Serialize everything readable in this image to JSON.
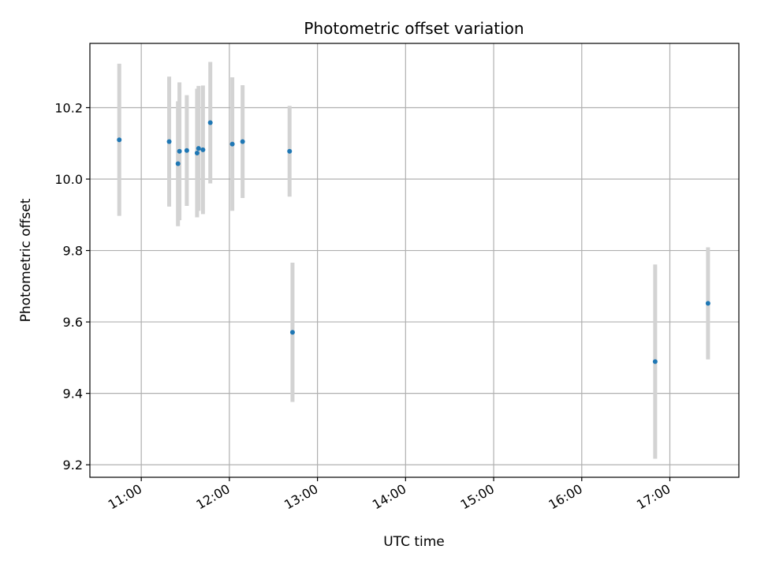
{
  "chart_data": {
    "type": "scatter",
    "title": "Photometric offset variation",
    "xlabel": "UTC time",
    "ylabel": "Photometric offset",
    "x_unit": "UTC time (HH:MM)",
    "xlim": [
      "10:25",
      "17:47"
    ],
    "ylim": [
      9.165,
      10.38
    ],
    "x_ticks": [
      "11:00",
      "12:00",
      "13:00",
      "14:00",
      "15:00",
      "16:00",
      "17:00"
    ],
    "y_ticks": [
      "9.2",
      "9.4",
      "9.6",
      "9.8",
      "10.0",
      "10.2"
    ],
    "grid": true,
    "legend": false,
    "colors": {
      "marker": "#1f77b4",
      "errorbar": "#d3d3d3",
      "grid": "#b0b0b0"
    },
    "series": [
      {
        "points": [
          {
            "x": "10:45",
            "y": 10.11,
            "err": 0.213
          },
          {
            "x": "11:19",
            "y": 10.105,
            "err": 0.182
          },
          {
            "x": "11:25",
            "y": 10.043,
            "err": 0.175
          },
          {
            "x": "11:26",
            "y": 10.078,
            "err": 0.193
          },
          {
            "x": "11:31",
            "y": 10.08,
            "err": 0.155
          },
          {
            "x": "11:38",
            "y": 10.073,
            "err": 0.18
          },
          {
            "x": "11:39",
            "y": 10.086,
            "err": 0.175
          },
          {
            "x": "11:42",
            "y": 10.082,
            "err": 0.18
          },
          {
            "x": "11:47",
            "y": 10.158,
            "err": 0.17
          },
          {
            "x": "12:02",
            "y": 10.098,
            "err": 0.187
          },
          {
            "x": "12:09",
            "y": 10.105,
            "err": 0.158
          },
          {
            "x": "12:41",
            "y": 10.078,
            "err": 0.127
          },
          {
            "x": "12:43",
            "y": 9.571,
            "err": 0.195
          },
          {
            "x": "16:50",
            "y": 9.489,
            "err": 0.272
          },
          {
            "x": "17:26",
            "y": 9.652,
            "err": 0.157
          }
        ]
      }
    ]
  }
}
